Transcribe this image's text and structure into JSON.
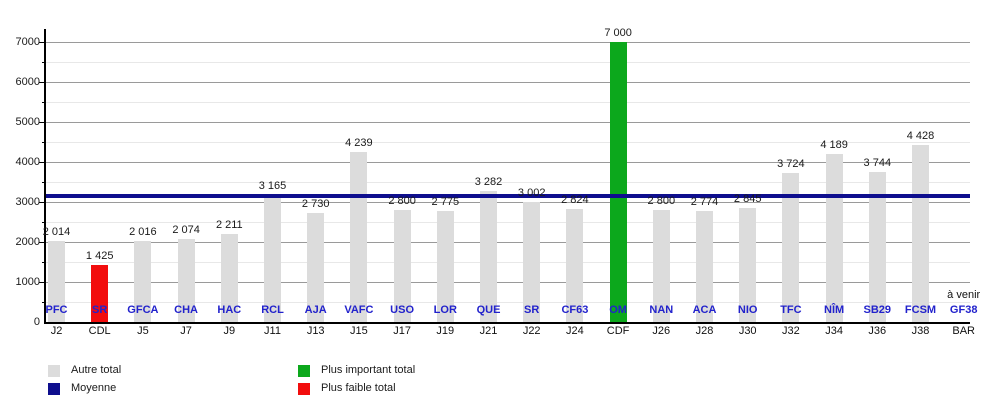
{
  "chart_data": {
    "type": "bar",
    "title": "",
    "xlabel": "",
    "ylabel": "",
    "ylim": [
      0,
      7400
    ],
    "y_axis": {
      "major_ticks": [
        0,
        1000,
        2000,
        3000,
        4000,
        5000,
        6000,
        7000
      ],
      "minor_step": 500,
      "grid": "on"
    },
    "moyenne_value": 3146,
    "upcoming_label": "à venir",
    "bars": [
      {
        "team": "PFC",
        "day": "J2",
        "value": 2014,
        "label": "2 014",
        "kind": "autre"
      },
      {
        "team": "SR",
        "day": "CDL",
        "value": 1425,
        "label": "1 425",
        "kind": "faible"
      },
      {
        "team": "GFCA",
        "day": "J5",
        "value": 2016,
        "label": "2 016",
        "kind": "autre"
      },
      {
        "team": "CHA",
        "day": "J7",
        "value": 2074,
        "label": "2 074",
        "kind": "autre"
      },
      {
        "team": "HAC",
        "day": "J9",
        "value": 2211,
        "label": "2 211",
        "kind": "autre"
      },
      {
        "team": "RCL",
        "day": "J11",
        "value": 3165,
        "label": "3 165",
        "kind": "autre"
      },
      {
        "team": "AJA",
        "day": "J13",
        "value": 2730,
        "label": "2 730",
        "kind": "autre"
      },
      {
        "team": "VAFC",
        "day": "J15",
        "value": 4239,
        "label": "4 239",
        "kind": "autre"
      },
      {
        "team": "USO",
        "day": "J17",
        "value": 2800,
        "label": "2 800",
        "kind": "autre"
      },
      {
        "team": "LOR",
        "day": "J19",
        "value": 2775,
        "label": "2 775",
        "kind": "autre"
      },
      {
        "team": "QUE",
        "day": "J21",
        "value": 3282,
        "label": "3 282",
        "kind": "autre"
      },
      {
        "team": "SR",
        "day": "J22",
        "value": 3002,
        "label": "3 002",
        "kind": "autre"
      },
      {
        "team": "CF63",
        "day": "J24",
        "value": 2824,
        "label": "2 824",
        "kind": "autre"
      },
      {
        "team": "OM",
        "day": "CDF",
        "value": 7000,
        "label": "7 000",
        "kind": "important"
      },
      {
        "team": "NAN",
        "day": "J26",
        "value": 2800,
        "label": "2 800",
        "kind": "autre"
      },
      {
        "team": "ACA",
        "day": "J28",
        "value": 2774,
        "label": "2 774",
        "kind": "autre"
      },
      {
        "team": "NIO",
        "day": "J30",
        "value": 2845,
        "label": "2 845",
        "kind": "autre"
      },
      {
        "team": "TFC",
        "day": "J32",
        "value": 3724,
        "label": "3 724",
        "kind": "autre"
      },
      {
        "team": "NÎM",
        "day": "J34",
        "value": 4189,
        "label": "4 189",
        "kind": "autre"
      },
      {
        "team": "SB29",
        "day": "J36",
        "value": 3744,
        "label": "3 744",
        "kind": "autre"
      },
      {
        "team": "FCSM",
        "day": "J38",
        "value": 4428,
        "label": "4 428",
        "kind": "autre"
      },
      {
        "team": "GF38",
        "day": "BAR",
        "value": null,
        "label": "",
        "kind": "upcoming"
      }
    ],
    "legend": [
      {
        "label": "Autre total",
        "kind": "autre"
      },
      {
        "label": "Moyenne",
        "kind": "moyenne"
      },
      {
        "label": "Plus important total",
        "kind": "important"
      },
      {
        "label": "Plus faible total",
        "kind": "faible"
      }
    ],
    "colors": {
      "autre": "#dcdcdc",
      "faible": "#f20d0d",
      "important": "#0ca81c",
      "moyenne": "#0e0e8e",
      "team_label": "#2222cc",
      "grid_major": "#9a9a9a",
      "grid_minor": "#e8e8e8",
      "axis": "#000000"
    }
  }
}
